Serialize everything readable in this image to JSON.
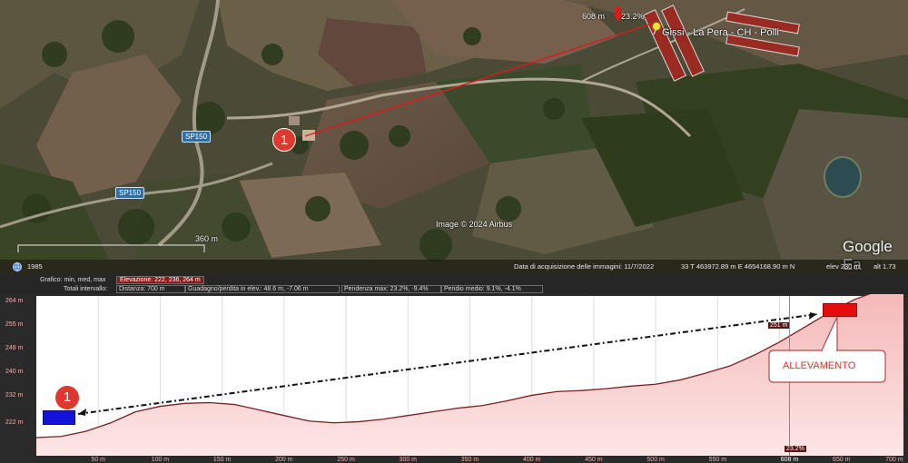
{
  "map": {
    "road_label_1": "SP150",
    "road_label_2": "SP150",
    "marker_label": "1",
    "place_label": "Gissi - La Pera - CH - Polli",
    "measure_label": "608 m",
    "grade_label": "23.2%",
    "distance_label": "360 m",
    "image_credit": "Image © 2024 Airbus",
    "watermark": "Google Ea",
    "year": "1985",
    "acquisition_date": "Data di acquisizione delle immagini: 11/7/2022",
    "coordinates": "33 T 463972.89 m E 4654168.90 m N",
    "elevation_readout": "elev   230 m",
    "altitude_readout": "alt  1.73"
  },
  "profile_info": {
    "graph_label": "Grafico: min, med, max",
    "elevation": "Elevazione: 222, 236, 264 m",
    "totals_label": "Totali intervallo:",
    "distance": "Distanza: 700 m",
    "gain_loss": "Guadagno/perdita in elev.: 48.6 m, -7.06 m",
    "max_slope": "Pendenza max: 23.2%, -9.4%",
    "avg_slope": "Pendio medio: 9.1%, -4.1%"
  },
  "chart_data": {
    "type": "area",
    "y_ticks": [
      "264 m",
      "255 m",
      "248 m",
      "240 m",
      "232 m",
      "222 m"
    ],
    "x_ticks": [
      "50 m",
      "100 m",
      "150 m",
      "200 m",
      "250 m",
      "300 m",
      "350 m",
      "400 m",
      "450 m",
      "500 m",
      "550 m",
      "608 m",
      "650 m",
      "700 m"
    ],
    "ylim": [
      222,
      264
    ],
    "xlim": [
      0,
      700
    ],
    "x": [
      0,
      20,
      40,
      60,
      80,
      100,
      120,
      140,
      160,
      180,
      200,
      220,
      240,
      260,
      280,
      300,
      320,
      340,
      360,
      380,
      400,
      420,
      440,
      460,
      480,
      500,
      520,
      540,
      560,
      580,
      600,
      620,
      640,
      660,
      680,
      700
    ],
    "y": [
      222.5,
      222.8,
      224.2,
      226.5,
      229.5,
      231.0,
      231.8,
      232.0,
      231.5,
      230.0,
      228.5,
      227.0,
      226.5,
      226.8,
      227.5,
      228.5,
      229.5,
      230.5,
      231.2,
      232.5,
      234.0,
      235.0,
      235.3,
      235.8,
      236.5,
      237.0,
      238.2,
      240.0,
      242.0,
      245.0,
      248.5,
      252.5,
      256.5,
      260.0,
      262.5,
      264.0
    ],
    "cursor_x": 608,
    "cursor_elevation": "251 m",
    "cursor_grade": "23.2%",
    "start_marker": "1",
    "annotation": "ALLEVAMENTO"
  }
}
